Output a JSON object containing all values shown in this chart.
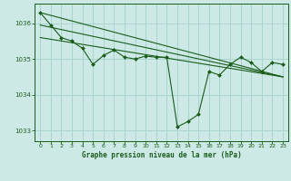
{
  "title": "Graphe pression niveau de la mer (hPa)",
  "background_color": "#cce9e5",
  "grid_color": "#aad4d0",
  "line_color": "#1a5c1a",
  "marker_color": "#1a5c1a",
  "xlim": [
    -0.5,
    23.5
  ],
  "ylim": [
    1032.7,
    1036.55
  ],
  "yticks": [
    1033,
    1034,
    1035,
    1036
  ],
  "xticks": [
    0,
    1,
    2,
    3,
    4,
    5,
    6,
    7,
    8,
    9,
    10,
    11,
    12,
    13,
    14,
    15,
    16,
    17,
    18,
    19,
    20,
    21,
    22,
    23
  ],
  "series": [
    {
      "x": [
        0,
        1,
        2,
        3,
        4,
        5,
        6,
        7,
        8,
        9,
        10,
        11,
        12,
        13,
        14,
        15,
        16,
        17,
        18,
        19,
        20,
        21,
        22,
        23
      ],
      "y": [
        1036.3,
        1035.95,
        1035.6,
        1035.5,
        1035.3,
        1034.85,
        1035.1,
        1035.25,
        1035.05,
        1035.0,
        1035.08,
        1035.05,
        1035.05,
        1033.1,
        1033.25,
        1033.45,
        1034.65,
        1034.55,
        1034.85,
        1035.05,
        1034.9,
        1034.65,
        1034.9,
        1034.85
      ]
    },
    {
      "x": [
        0,
        23
      ],
      "y": [
        1036.3,
        1034.5
      ]
    },
    {
      "x": [
        0,
        23
      ],
      "y": [
        1035.95,
        1034.5
      ]
    },
    {
      "x": [
        0,
        23
      ],
      "y": [
        1035.6,
        1034.5
      ]
    }
  ]
}
